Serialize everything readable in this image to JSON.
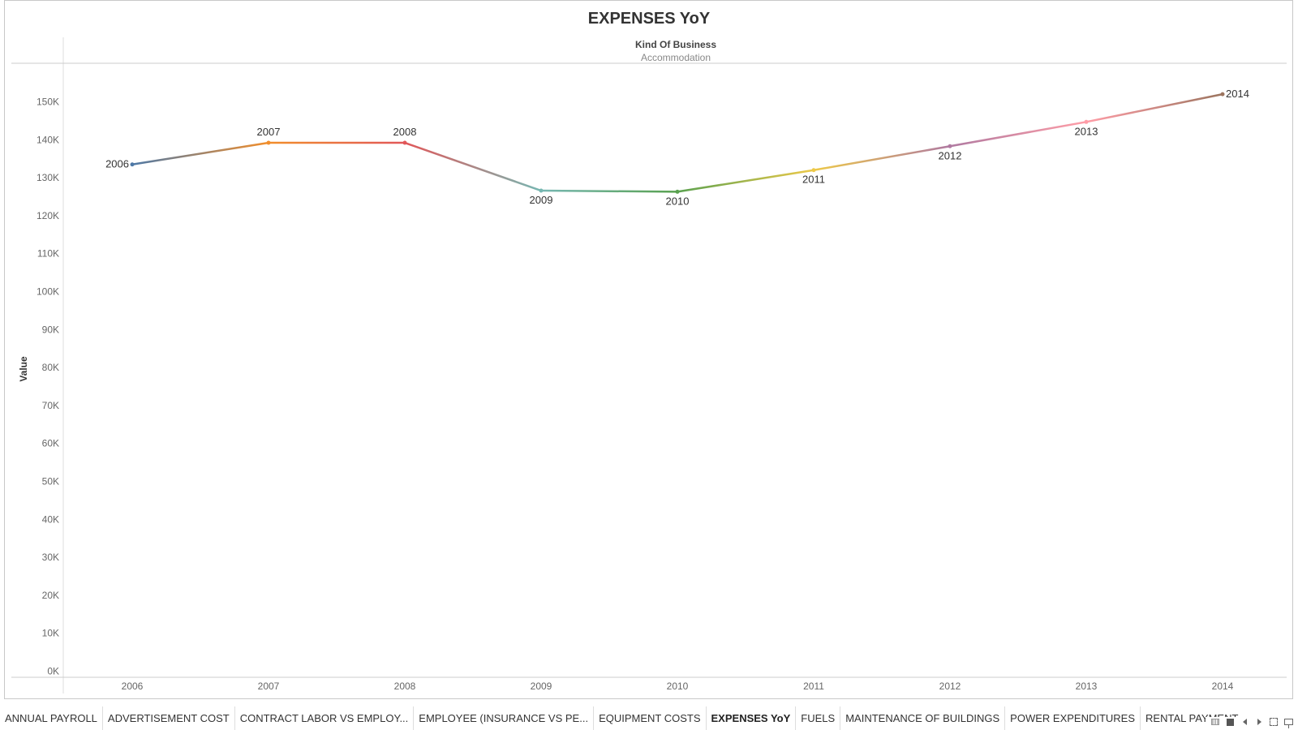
{
  "dashboard": {
    "title": "EXPENSES YoY",
    "header_field": "Kind Of Business",
    "header_value": "Accommodation"
  },
  "chart_data": {
    "type": "line",
    "title": "EXPENSES YoY",
    "xlabel": "",
    "ylabel": "Value",
    "ylim": [
      0,
      160000
    ],
    "grid": false,
    "legend": "none",
    "facet": {
      "label": "Kind Of Business",
      "value": "Accommodation"
    },
    "x": [
      "2006",
      "2007",
      "2008",
      "2009",
      "2010",
      "2011",
      "2012",
      "2013",
      "2014"
    ],
    "values": [
      133500,
      139200,
      139200,
      126600,
      126300,
      132000,
      138300,
      144700,
      152000
    ],
    "y_ticks": [
      0,
      10000,
      20000,
      30000,
      40000,
      50000,
      60000,
      70000,
      80000,
      90000,
      100000,
      110000,
      120000,
      130000,
      140000,
      150000
    ],
    "y_tick_labels": [
      "0K",
      "10K",
      "20K",
      "30K",
      "40K",
      "50K",
      "60K",
      "70K",
      "80K",
      "90K",
      "100K",
      "110K",
      "120K",
      "130K",
      "140K",
      "150K"
    ],
    "point_labels": [
      "2006",
      "2007",
      "2008",
      "2009",
      "2010",
      "2011",
      "2012",
      "2013",
      "2014"
    ],
    "point_label_side": [
      "left",
      "above",
      "above",
      "below",
      "below",
      "below",
      "below",
      "below",
      "right"
    ],
    "colors": [
      "#4e79a7",
      "#f28e2b",
      "#e15759",
      "#76b7b2",
      "#59a14f",
      "#edc948",
      "#b07aa1",
      "#ff9da7",
      "#9c755f"
    ]
  },
  "tabs": [
    {
      "label": "ANNUAL PAYROLL",
      "active": false
    },
    {
      "label": "ADVERTISEMENT COST",
      "active": false
    },
    {
      "label": "CONTRACT LABOR VS EMPLOY...",
      "active": false
    },
    {
      "label": "EMPLOYEE (INSURANCE VS PE...",
      "active": false
    },
    {
      "label": "EQUIPMENT COSTS",
      "active": false
    },
    {
      "label": "EXPENSES YoY",
      "active": true
    },
    {
      "label": "FUELS",
      "active": false
    },
    {
      "label": "MAINTENANCE OF BUILDINGS",
      "active": false
    },
    {
      "label": "POWER EXPENDITURES",
      "active": false
    },
    {
      "label": "RENTAL PAYMENT M",
      "active": false
    }
  ],
  "view_controls": {
    "icons": [
      "sheet-grid-icon",
      "filmstrip-icon",
      "chevron-left-icon",
      "chevron-right-icon",
      "fullscreen-icon",
      "presentation-icon"
    ]
  }
}
